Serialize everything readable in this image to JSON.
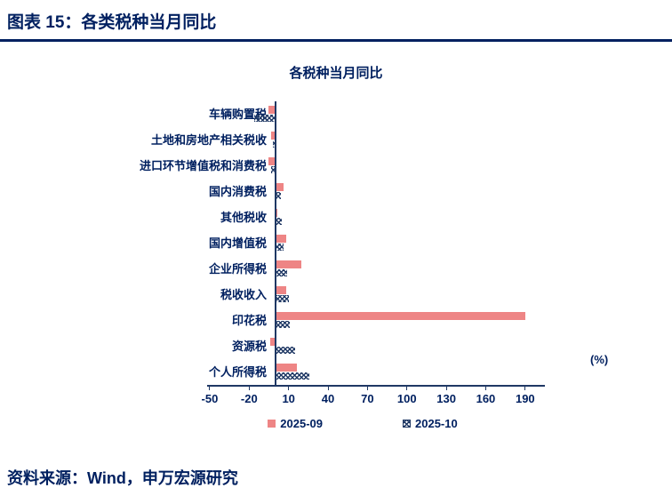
{
  "page": {
    "header_title": "图表 15：各类税种当月同比",
    "footer_source": "资料来源：Wind，申万宏源研究"
  },
  "colors": {
    "navy_text": "#002060",
    "axis_navy": "#1f3864",
    "bar_pink": "#ee8585"
  },
  "chart_data": {
    "type": "bar",
    "orientation": "horizontal",
    "title": "各税种当月同比",
    "unit_label": "(%)",
    "categories": [
      "车辆购置税",
      "土地和房地产相关税收",
      "进口环节增值税和消费税",
      "国内消费税",
      "其他税收",
      "国内增值税",
      "企业所得税",
      "税收收入",
      "印花税",
      "资源税",
      "个人所得税"
    ],
    "series": [
      {
        "name": "2025-09",
        "color": "#ee8585",
        "pattern": "solid",
        "values": [
          -5,
          -3,
          -5,
          6,
          1,
          8,
          20,
          8,
          190,
          -4,
          16
        ]
      },
      {
        "name": "2025-10",
        "color": "#1f3864",
        "pattern": "crosshatch",
        "values": [
          -16,
          -2,
          -3,
          4,
          5,
          6,
          9,
          10,
          11,
          15,
          26
        ]
      }
    ],
    "x_ticks": [
      -50,
      -20,
      10,
      40,
      70,
      100,
      130,
      160,
      190
    ],
    "xlim": [
      -52,
      205
    ],
    "grid": false,
    "legend_position": "bottom"
  }
}
